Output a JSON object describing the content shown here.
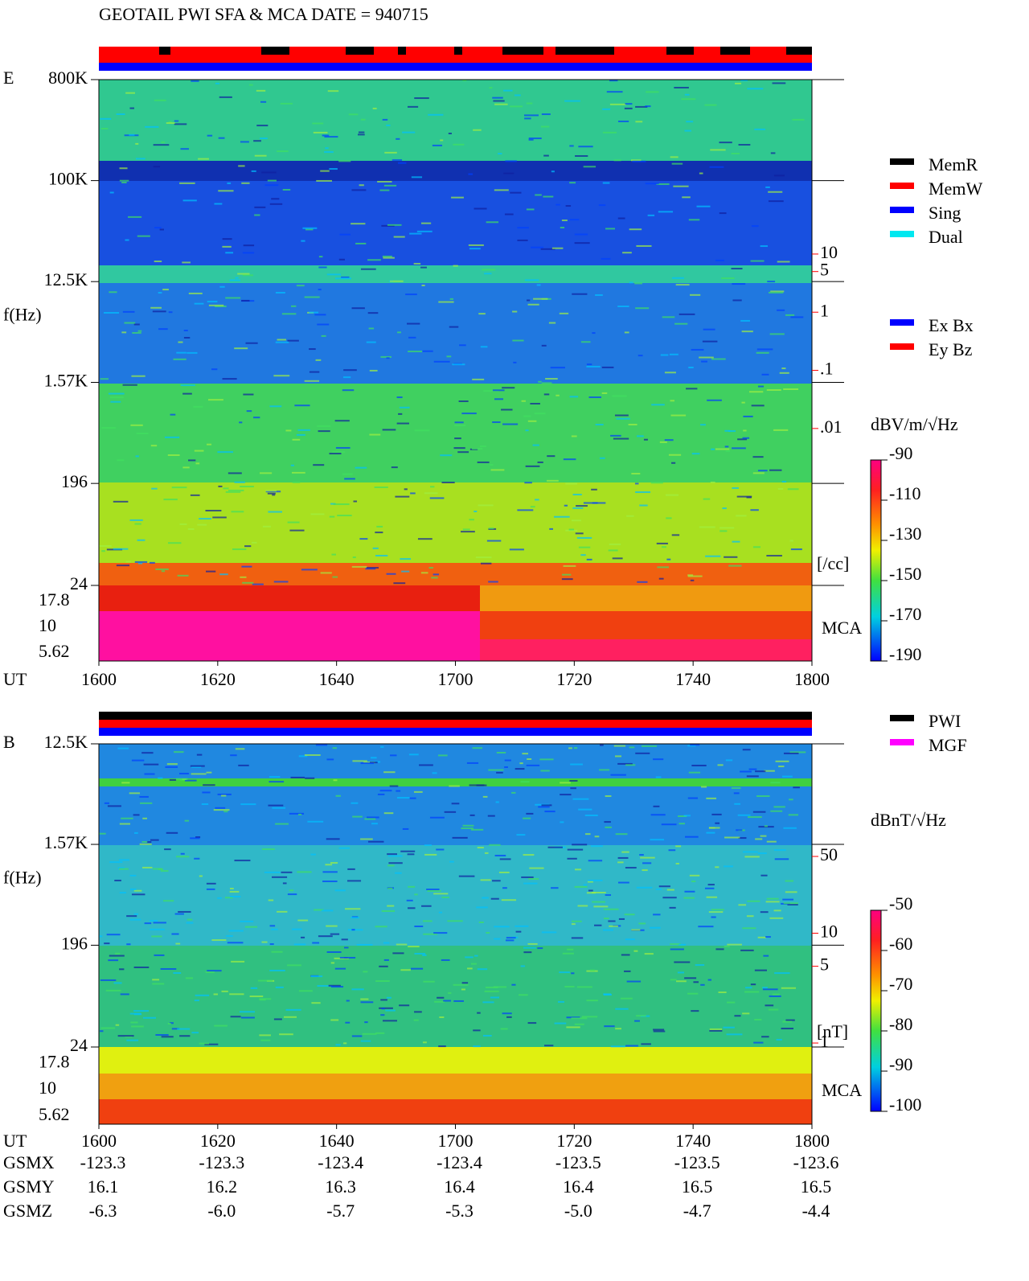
{
  "chart_data": [
    {
      "type": "spectrogram",
      "title": "GEOTAIL  PWI SFA & MCA   DATE = 940715",
      "label": "E",
      "ylabel": "f(Hz)",
      "xlabel": "UT",
      "log_y": true,
      "ylim": [
        24,
        800000
      ],
      "yticks": [
        {
          "value": 800000,
          "label": "800K"
        },
        {
          "value": 100000,
          "label": "100K"
        },
        {
          "value": 12500,
          "label": "12.5K"
        },
        {
          "value": 1570,
          "label": "1.57K"
        },
        196,
        24
      ],
      "mca_label": "MCA",
      "mca_lim": [
        4.7,
        25.5
      ],
      "mca_ticks": [
        17.8,
        10,
        5.62
      ],
      "xticks": [
        "1600",
        "1620",
        "1640",
        "1700",
        "1720",
        "1740",
        "1800"
      ],
      "right_lim": [
        2e-05,
        10000
      ],
      "right_ticks": [
        10,
        5,
        1,
        {
          "value": 0.1,
          "label": ".1"
        },
        {
          "value": 0.01,
          "label": ".01"
        }
      ],
      "right_unit": "[/cc]",
      "right_color": "#ff0000",
      "colorbar": {
        "label": "dBV/m/√Hz",
        "lim": [
          -190,
          -90
        ],
        "ticks": [
          -90,
          -110,
          -130,
          -150,
          -170,
          -190
        ]
      },
      "legend": [
        {
          "name": "MemR",
          "color": "#000000"
        },
        {
          "name": "MemW",
          "color": "#ff0000"
        },
        {
          "name": "Sing",
          "color": "#0000ff"
        },
        {
          "name": "Dual",
          "color": "#00e8f0"
        }
      ],
      "legend2": [
        {
          "name": "Ex Bx",
          "color": "#0000ff"
        },
        {
          "name": "Ey Bz",
          "color": "#ff0000"
        }
      ]
    },
    {
      "type": "spectrogram",
      "label": "B",
      "ylabel": "f(Hz)",
      "xlabel": "UT",
      "log_y": true,
      "ylim": [
        24,
        12500
      ],
      "yticks": [
        {
          "value": 12500,
          "label": "12.5K"
        },
        {
          "value": 1570,
          "label": "1.57K"
        },
        196,
        24
      ],
      "mca_label": "MCA",
      "mca_lim": [
        4.7,
        25.5
      ],
      "mca_ticks": [
        17.8,
        10,
        5.62
      ],
      "xticks": [
        "1600",
        "1620",
        "1640",
        "1700",
        "1720",
        "1740",
        "1800"
      ],
      "right_lim": [
        0.92,
        530
      ],
      "right_ticks": [
        50,
        10,
        5,
        1
      ],
      "right_unit": "[nT]",
      "right_color": "#ff0000",
      "colorbar": {
        "label": "dBnT/√Hz",
        "lim": [
          -100,
          -50
        ],
        "ticks": [
          -50,
          -60,
          -70,
          -80,
          -90,
          -100
        ]
      },
      "legend": [
        {
          "name": "PWI",
          "color": "#000000"
        },
        {
          "name": "MGF",
          "color": "#ff00ff"
        }
      ]
    }
  ],
  "ephemeris": {
    "rows": [
      {
        "label": "GSMX",
        "values": [
          "-123.3",
          "-123.3",
          "-123.4",
          "-123.4",
          "-123.5",
          "-123.5",
          "-123.6"
        ]
      },
      {
        "label": "GSMY",
        "values": [
          "16.1",
          "16.2",
          "16.3",
          "16.4",
          "16.4",
          "16.5",
          "16.5"
        ]
      },
      {
        "label": "GSMZ",
        "values": [
          "-6.3",
          "-6.0",
          "-5.7",
          "-5.3",
          "-5.0",
          "-4.7",
          "-4.4"
        ]
      }
    ]
  }
}
